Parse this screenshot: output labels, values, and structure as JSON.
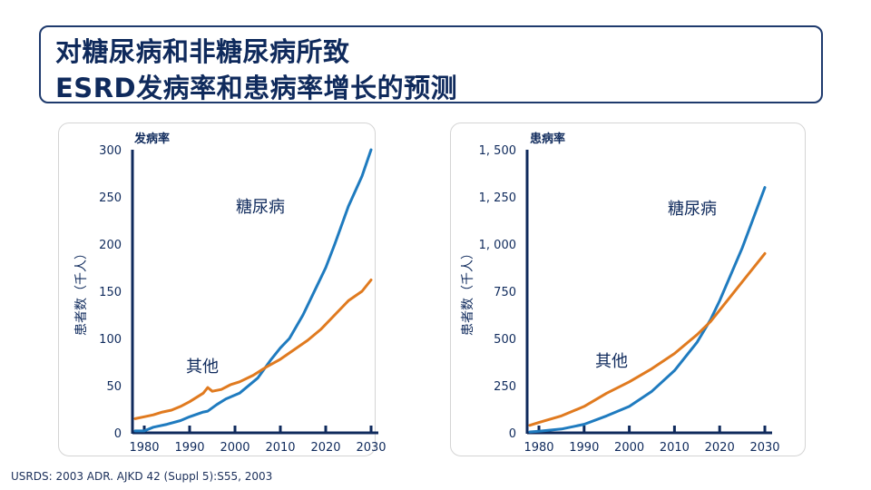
{
  "title": {
    "line1": "对糖尿病和非糖尿病所致",
    "line2": "ESRD发病率和患病率增长的预测"
  },
  "footer": "USRDS: 2003 ADR. AJKD 42 (Suppl 5):S55, 2003",
  "colors": {
    "diabetes": "#1f7bbf",
    "other": "#e07a1f",
    "axis": "#0f2a5c"
  },
  "chart_data": [
    {
      "type": "line",
      "title": "发病率",
      "ylabel": "患者数（千人）",
      "xlim": [
        1977.5,
        2033
      ],
      "ylim": [
        0,
        300
      ],
      "xticks": [
        1980,
        1990,
        2000,
        2010,
        2020,
        2030
      ],
      "ytick_labels": [
        "0",
        "50",
        "100",
        "150",
        "200",
        "250",
        "300"
      ],
      "yticks": [
        0,
        50,
        100,
        150,
        200,
        250,
        300
      ],
      "grid": false,
      "annotations": [
        "糖尿病",
        "其他"
      ],
      "series": [
        {
          "name": "糖尿病",
          "x": [
            1978,
            1980,
            1982,
            1985,
            1988,
            1990,
            1993,
            1994,
            1996,
            1998,
            2000,
            2001,
            2005,
            2008,
            2010,
            2012,
            2015,
            2018,
            2020,
            2022,
            2025,
            2028,
            2030
          ],
          "y": [
            2,
            2,
            6,
            9,
            13,
            17,
            22,
            23,
            30,
            36,
            40,
            42,
            58,
            78,
            90,
            100,
            125,
            155,
            175,
            200,
            240,
            272,
            300
          ]
        },
        {
          "name": "其他",
          "x": [
            1978,
            1980,
            1982,
            1984,
            1986,
            1988,
            1990,
            1993,
            1994,
            1995,
            1997,
            1999,
            2001,
            2004,
            2007,
            2010,
            2013,
            2016,
            2019,
            2022,
            2025,
            2028,
            2030
          ],
          "y": [
            15,
            17,
            19,
            22,
            24,
            28,
            33,
            42,
            48,
            44,
            46,
            51,
            54,
            61,
            70,
            78,
            88,
            98,
            110,
            125,
            140,
            150,
            162
          ]
        }
      ]
    },
    {
      "type": "line",
      "title": "患病率",
      "ylabel": "患者数（千人）",
      "xlim": [
        1977.5,
        2033
      ],
      "ylim": [
        0,
        1500
      ],
      "xticks": [
        1980,
        1990,
        2000,
        2010,
        2020,
        2030
      ],
      "ytick_labels": [
        "0",
        "250",
        "500",
        "750",
        "1, 000",
        "1, 250",
        "1, 500"
      ],
      "yticks": [
        0,
        250,
        500,
        750,
        1000,
        1250,
        1500
      ],
      "grid": false,
      "annotations": [
        "糖尿病",
        "其他"
      ],
      "series": [
        {
          "name": "糖尿病",
          "x": [
            1978,
            1980,
            1985,
            1990,
            1995,
            2000,
            2005,
            2010,
            2015,
            2018,
            2020,
            2025,
            2030
          ],
          "y": [
            5,
            8,
            20,
            45,
            90,
            140,
            220,
            330,
            480,
            600,
            700,
            980,
            1300
          ]
        },
        {
          "name": "其他",
          "x": [
            1978,
            1980,
            1985,
            1990,
            1995,
            2000,
            2005,
            2010,
            2015,
            2018,
            2020,
            2025,
            2030
          ],
          "y": [
            40,
            55,
            90,
            140,
            210,
            270,
            340,
            420,
            520,
            590,
            650,
            800,
            950
          ]
        }
      ]
    }
  ]
}
